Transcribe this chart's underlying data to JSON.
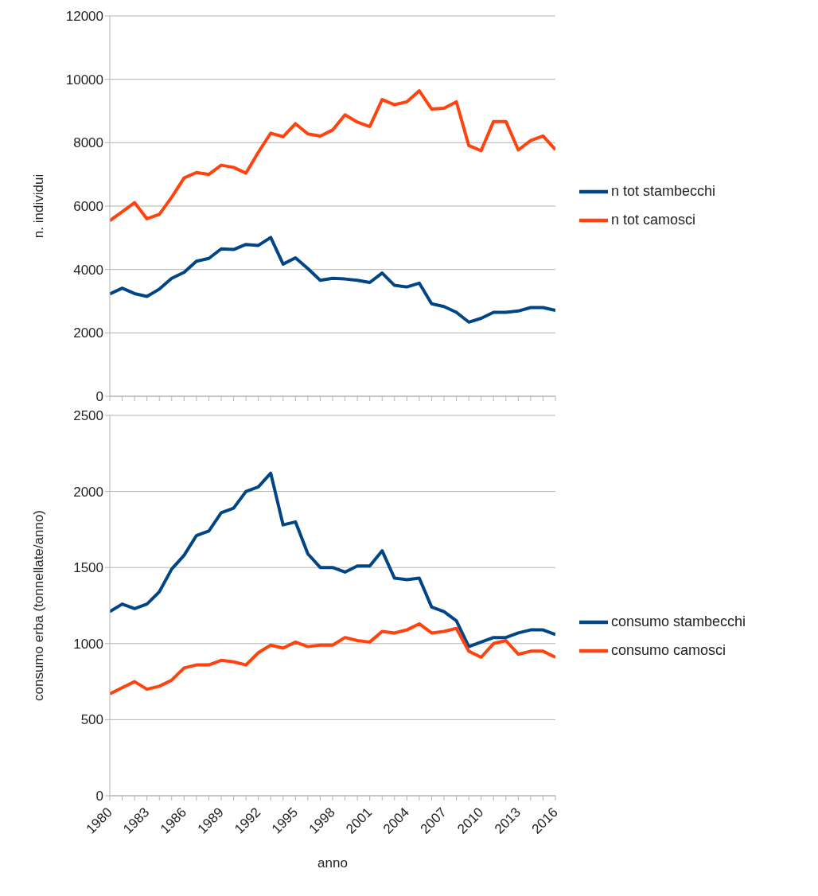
{
  "chart_data": [
    {
      "type": "line",
      "ylabel": "n. individui",
      "x": [
        1980,
        1981,
        1982,
        1983,
        1984,
        1985,
        1986,
        1987,
        1988,
        1989,
        1990,
        1991,
        1992,
        1993,
        1994,
        1995,
        1996,
        1997,
        1998,
        1999,
        2000,
        2001,
        2002,
        2003,
        2004,
        2005,
        2006,
        2007,
        2008,
        2009,
        2010,
        2011,
        2012,
        2013,
        2014,
        2015,
        2016
      ],
      "series": [
        {
          "name": "n tot stambecchi",
          "color": "#004586",
          "values": [
            3230,
            3410,
            3240,
            3150,
            3380,
            3720,
            3910,
            4260,
            4350,
            4650,
            4630,
            4790,
            4760,
            5010,
            4170,
            4370,
            4030,
            3660,
            3720,
            3700,
            3660,
            3590,
            3890,
            3500,
            3450,
            3570,
            2920,
            2830,
            2650,
            2340,
            2460,
            2650,
            2650,
            2690,
            2800,
            2800,
            2710
          ]
        },
        {
          "name": "n tot camosci",
          "color": "#ff420e",
          "values": [
            5540,
            5820,
            6110,
            5600,
            5740,
            6280,
            6890,
            7060,
            7000,
            7290,
            7220,
            7040,
            7700,
            8300,
            8190,
            8600,
            8280,
            8210,
            8400,
            8880,
            8650,
            8510,
            9360,
            9200,
            9290,
            9640,
            9060,
            9090,
            9290,
            7910,
            7750,
            8670,
            8670,
            7770,
            8070,
            8210,
            7780
          ]
        }
      ],
      "xlim": [
        1980,
        2016
      ],
      "xticks": [
        {
          "value": 1980,
          "label": null
        },
        {
          "value": 1981,
          "label": null
        },
        {
          "value": 1982,
          "label": null
        },
        {
          "value": 1983,
          "label": null
        },
        {
          "value": 1984,
          "label": null
        },
        {
          "value": 1985,
          "label": null
        },
        {
          "value": 1986,
          "label": null
        },
        {
          "value": 1987,
          "label": null
        },
        {
          "value": 1988,
          "label": null
        },
        {
          "value": 1989,
          "label": null
        },
        {
          "value": 1990,
          "label": null
        },
        {
          "value": 1991,
          "label": null
        },
        {
          "value": 1992,
          "label": null
        },
        {
          "value": 1993,
          "label": null
        },
        {
          "value": 1994,
          "label": null
        },
        {
          "value": 1995,
          "label": null
        },
        {
          "value": 1996,
          "label": null
        },
        {
          "value": 1997,
          "label": null
        },
        {
          "value": 1998,
          "label": null
        },
        {
          "value": 1999,
          "label": null
        },
        {
          "value": 2000,
          "label": null
        },
        {
          "value": 2001,
          "label": null
        },
        {
          "value": 2002,
          "label": null
        },
        {
          "value": 2003,
          "label": null
        },
        {
          "value": 2004,
          "label": null
        },
        {
          "value": 2005,
          "label": null
        },
        {
          "value": 2006,
          "label": null
        },
        {
          "value": 2007,
          "label": null
        },
        {
          "value": 2008,
          "label": null
        },
        {
          "value": 2009,
          "label": null
        },
        {
          "value": 2010,
          "label": null
        },
        {
          "value": 2011,
          "label": null
        },
        {
          "value": 2012,
          "label": null
        },
        {
          "value": 2013,
          "label": null
        },
        {
          "value": 2014,
          "label": null
        },
        {
          "value": 2015,
          "label": null
        },
        {
          "value": 2016,
          "label": null
        }
      ],
      "ylim": [
        0,
        12000
      ],
      "yticks": [
        0,
        2000,
        4000,
        6000,
        8000,
        10000,
        12000
      ],
      "tick_labels": "y",
      "grid": "y",
      "legend": "right",
      "marker": "none",
      "line_style": "solid"
    },
    {
      "type": "line",
      "xlabel": "anno",
      "ylabel": "consumo erba (tonnellate/anno)",
      "x": [
        1980,
        1981,
        1982,
        1983,
        1984,
        1985,
        1986,
        1987,
        1988,
        1989,
        1990,
        1991,
        1992,
        1993,
        1994,
        1995,
        1996,
        1997,
        1998,
        1999,
        2000,
        2001,
        2002,
        2003,
        2004,
        2005,
        2006,
        2007,
        2008,
        2009,
        2010,
        2011,
        2012,
        2013,
        2014,
        2015,
        2016
      ],
      "series": [
        {
          "name": "consumo stambecchi",
          "color": "#004586",
          "values": [
            1210,
            1260,
            1230,
            1260,
            1340,
            1490,
            1580,
            1710,
            1740,
            1860,
            1890,
            2000,
            2030,
            2120,
            1780,
            1800,
            1590,
            1500,
            1500,
            1470,
            1510,
            1510,
            1610,
            1430,
            1420,
            1430,
            1240,
            1210,
            1150,
            980,
            1010,
            1040,
            1040,
            1070,
            1090,
            1090,
            1060
          ]
        },
        {
          "name": "consumo camosci",
          "color": "#ff420e",
          "values": [
            670,
            710,
            750,
            700,
            720,
            760,
            840,
            860,
            860,
            890,
            880,
            860,
            940,
            990,
            970,
            1010,
            980,
            990,
            990,
            1040,
            1020,
            1010,
            1080,
            1070,
            1090,
            1130,
            1070,
            1080,
            1100,
            950,
            910,
            1000,
            1020,
            930,
            950,
            950,
            910
          ]
        }
      ],
      "xlim": [
        1980,
        2016
      ],
      "xticks": [
        1980,
        {
          "value": 1981,
          "label": null
        },
        {
          "value": 1982,
          "label": null
        },
        1983,
        {
          "value": 1984,
          "label": null
        },
        {
          "value": 1985,
          "label": null
        },
        1986,
        {
          "value": 1987,
          "label": null
        },
        {
          "value": 1988,
          "label": null
        },
        1989,
        {
          "value": 1990,
          "label": null
        },
        {
          "value": 1991,
          "label": null
        },
        1992,
        {
          "value": 1993,
          "label": null
        },
        {
          "value": 1994,
          "label": null
        },
        1995,
        {
          "value": 1996,
          "label": null
        },
        {
          "value": 1997,
          "label": null
        },
        1998,
        {
          "value": 1999,
          "label": null
        },
        {
          "value": 2000,
          "label": null
        },
        2001,
        {
          "value": 2002,
          "label": null
        },
        {
          "value": 2003,
          "label": null
        },
        2004,
        {
          "value": 2005,
          "label": null
        },
        {
          "value": 2006,
          "label": null
        },
        2007,
        {
          "value": 2008,
          "label": null
        },
        {
          "value": 2009,
          "label": null
        },
        2010,
        {
          "value": 2011,
          "label": null
        },
        {
          "value": 2012,
          "label": null
        },
        2013,
        {
          "value": 2014,
          "label": null
        },
        {
          "value": 2015,
          "label": null
        },
        2016
      ],
      "ylim": [
        0,
        2500
      ],
      "yticks": [
        0,
        500,
        1000,
        1500,
        2000,
        2500
      ],
      "grid": "y",
      "legend": "right",
      "marker": "none",
      "line_style": "solid"
    }
  ]
}
